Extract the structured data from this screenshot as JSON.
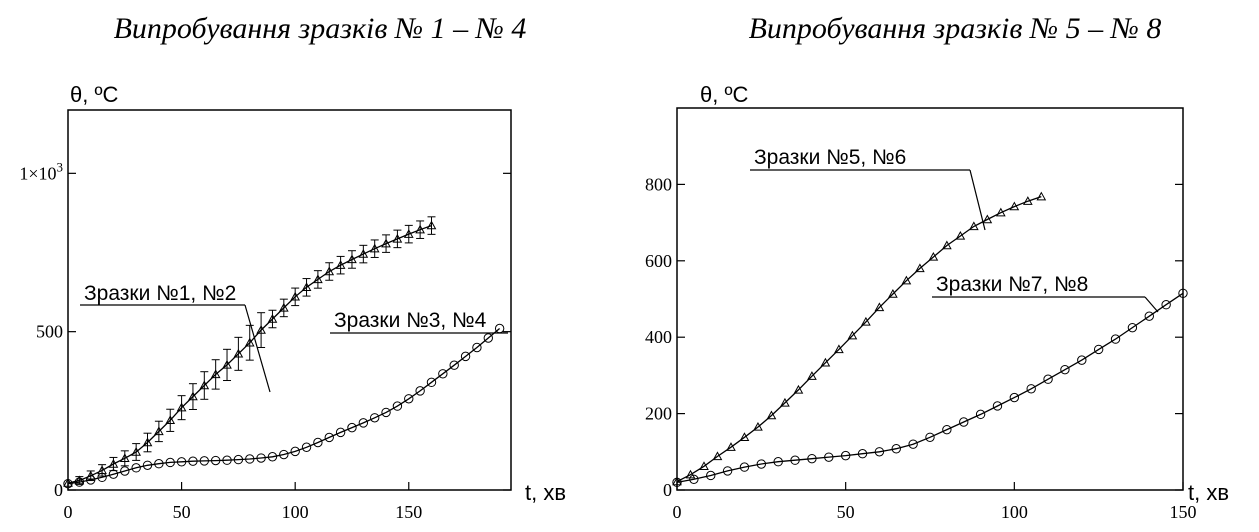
{
  "chart_data": [
    {
      "type": "line",
      "title": "Випробування зразків № 1 – № 4",
      "xlabel": "t, хв",
      "ylabel": "θ, ºC",
      "xlim": [
        0,
        195
      ],
      "ylim": [
        0,
        1200
      ],
      "x_ticks": [
        {
          "v": 0,
          "label": "0"
        },
        {
          "v": 50,
          "label": "50"
        },
        {
          "v": 100,
          "label": "100"
        },
        {
          "v": 150,
          "label": "150"
        }
      ],
      "y_ticks": [
        {
          "v": 0,
          "label": "0"
        },
        {
          "v": 500,
          "label": "500"
        },
        {
          "v": 1000,
          "label": "1×10",
          "sup": "3"
        }
      ],
      "series": [
        {
          "name": "Зразки №1, №2",
          "marker": "triangle",
          "error_bars": true,
          "x": [
            0,
            5,
            10,
            15,
            20,
            25,
            30,
            35,
            40,
            45,
            50,
            55,
            60,
            65,
            70,
            75,
            80,
            85,
            90,
            95,
            100,
            105,
            110,
            115,
            120,
            125,
            130,
            135,
            140,
            145,
            150,
            155,
            160
          ],
          "y": [
            22,
            30,
            45,
            62,
            82,
            100,
            120,
            150,
            185,
            220,
            260,
            295,
            330,
            365,
            395,
            430,
            465,
            505,
            540,
            575,
            610,
            640,
            665,
            690,
            710,
            728,
            745,
            762,
            778,
            793,
            808,
            822,
            835
          ]
        },
        {
          "name": "Зразки №3, №4",
          "marker": "circle",
          "error_bars": false,
          "x": [
            0,
            5,
            10,
            15,
            20,
            25,
            30,
            35,
            40,
            45,
            50,
            55,
            60,
            65,
            70,
            75,
            80,
            85,
            90,
            95,
            100,
            105,
            110,
            115,
            120,
            125,
            130,
            135,
            140,
            145,
            150,
            155,
            160,
            165,
            170,
            175,
            180,
            185,
            190
          ],
          "y": [
            20,
            25,
            32,
            40,
            50,
            60,
            70,
            78,
            83,
            87,
            89,
            91,
            92,
            93,
            94,
            96,
            98,
            101,
            105,
            112,
            122,
            135,
            150,
            166,
            182,
            197,
            212,
            228,
            245,
            265,
            288,
            313,
            340,
            367,
            394,
            422,
            450,
            480,
            510
          ]
        }
      ],
      "annotations": [
        {
          "text": "Зразки №1, №2",
          "series": 0
        },
        {
          "text": "Зразки №3, №4",
          "series": 1
        }
      ]
    },
    {
      "type": "line",
      "title": "Випробування зразків № 5 – № 8",
      "xlabel": "t, хв",
      "ylabel": "θ, ºC",
      "xlim": [
        0,
        150
      ],
      "ylim": [
        0,
        1000
      ],
      "x_ticks": [
        {
          "v": 0,
          "label": "0"
        },
        {
          "v": 50,
          "label": "50"
        },
        {
          "v": 100,
          "label": "100"
        },
        {
          "v": 150,
          "label": "150"
        }
      ],
      "y_ticks": [
        {
          "v": 0,
          "label": "0"
        },
        {
          "v": 200,
          "label": "200"
        },
        {
          "v": 400,
          "label": "400"
        },
        {
          "v": 600,
          "label": "600"
        },
        {
          "v": 800,
          "label": "800"
        }
      ],
      "series": [
        {
          "name": "Зразки №5, №6",
          "marker": "triangle",
          "error_bars": false,
          "x": [
            0,
            4,
            8,
            12,
            16,
            20,
            24,
            28,
            32,
            36,
            40,
            44,
            48,
            52,
            56,
            60,
            64,
            68,
            72,
            76,
            80,
            84,
            88,
            92,
            96,
            100,
            104,
            108
          ],
          "y": [
            22,
            40,
            62,
            88,
            112,
            138,
            165,
            195,
            228,
            262,
            298,
            333,
            368,
            404,
            440,
            478,
            513,
            548,
            580,
            610,
            640,
            665,
            690,
            708,
            726,
            742,
            756,
            768
          ]
        },
        {
          "name": "Зразки №7, №8",
          "marker": "circle",
          "error_bars": false,
          "x": [
            0,
            5,
            10,
            15,
            20,
            25,
            30,
            35,
            40,
            45,
            50,
            55,
            60,
            65,
            70,
            75,
            80,
            85,
            90,
            95,
            100,
            105,
            110,
            115,
            120,
            125,
            130,
            135,
            140,
            145,
            150
          ],
          "y": [
            20,
            28,
            38,
            50,
            60,
            68,
            74,
            78,
            82,
            86,
            90,
            95,
            100,
            108,
            120,
            138,
            158,
            178,
            198,
            220,
            242,
            265,
            290,
            315,
            340,
            368,
            395,
            425,
            455,
            485,
            515
          ]
        }
      ],
      "annotations": [
        {
          "text": "Зразки №5, №6",
          "series": 0
        },
        {
          "text": "Зразки №7, №8",
          "series": 1
        }
      ]
    }
  ]
}
